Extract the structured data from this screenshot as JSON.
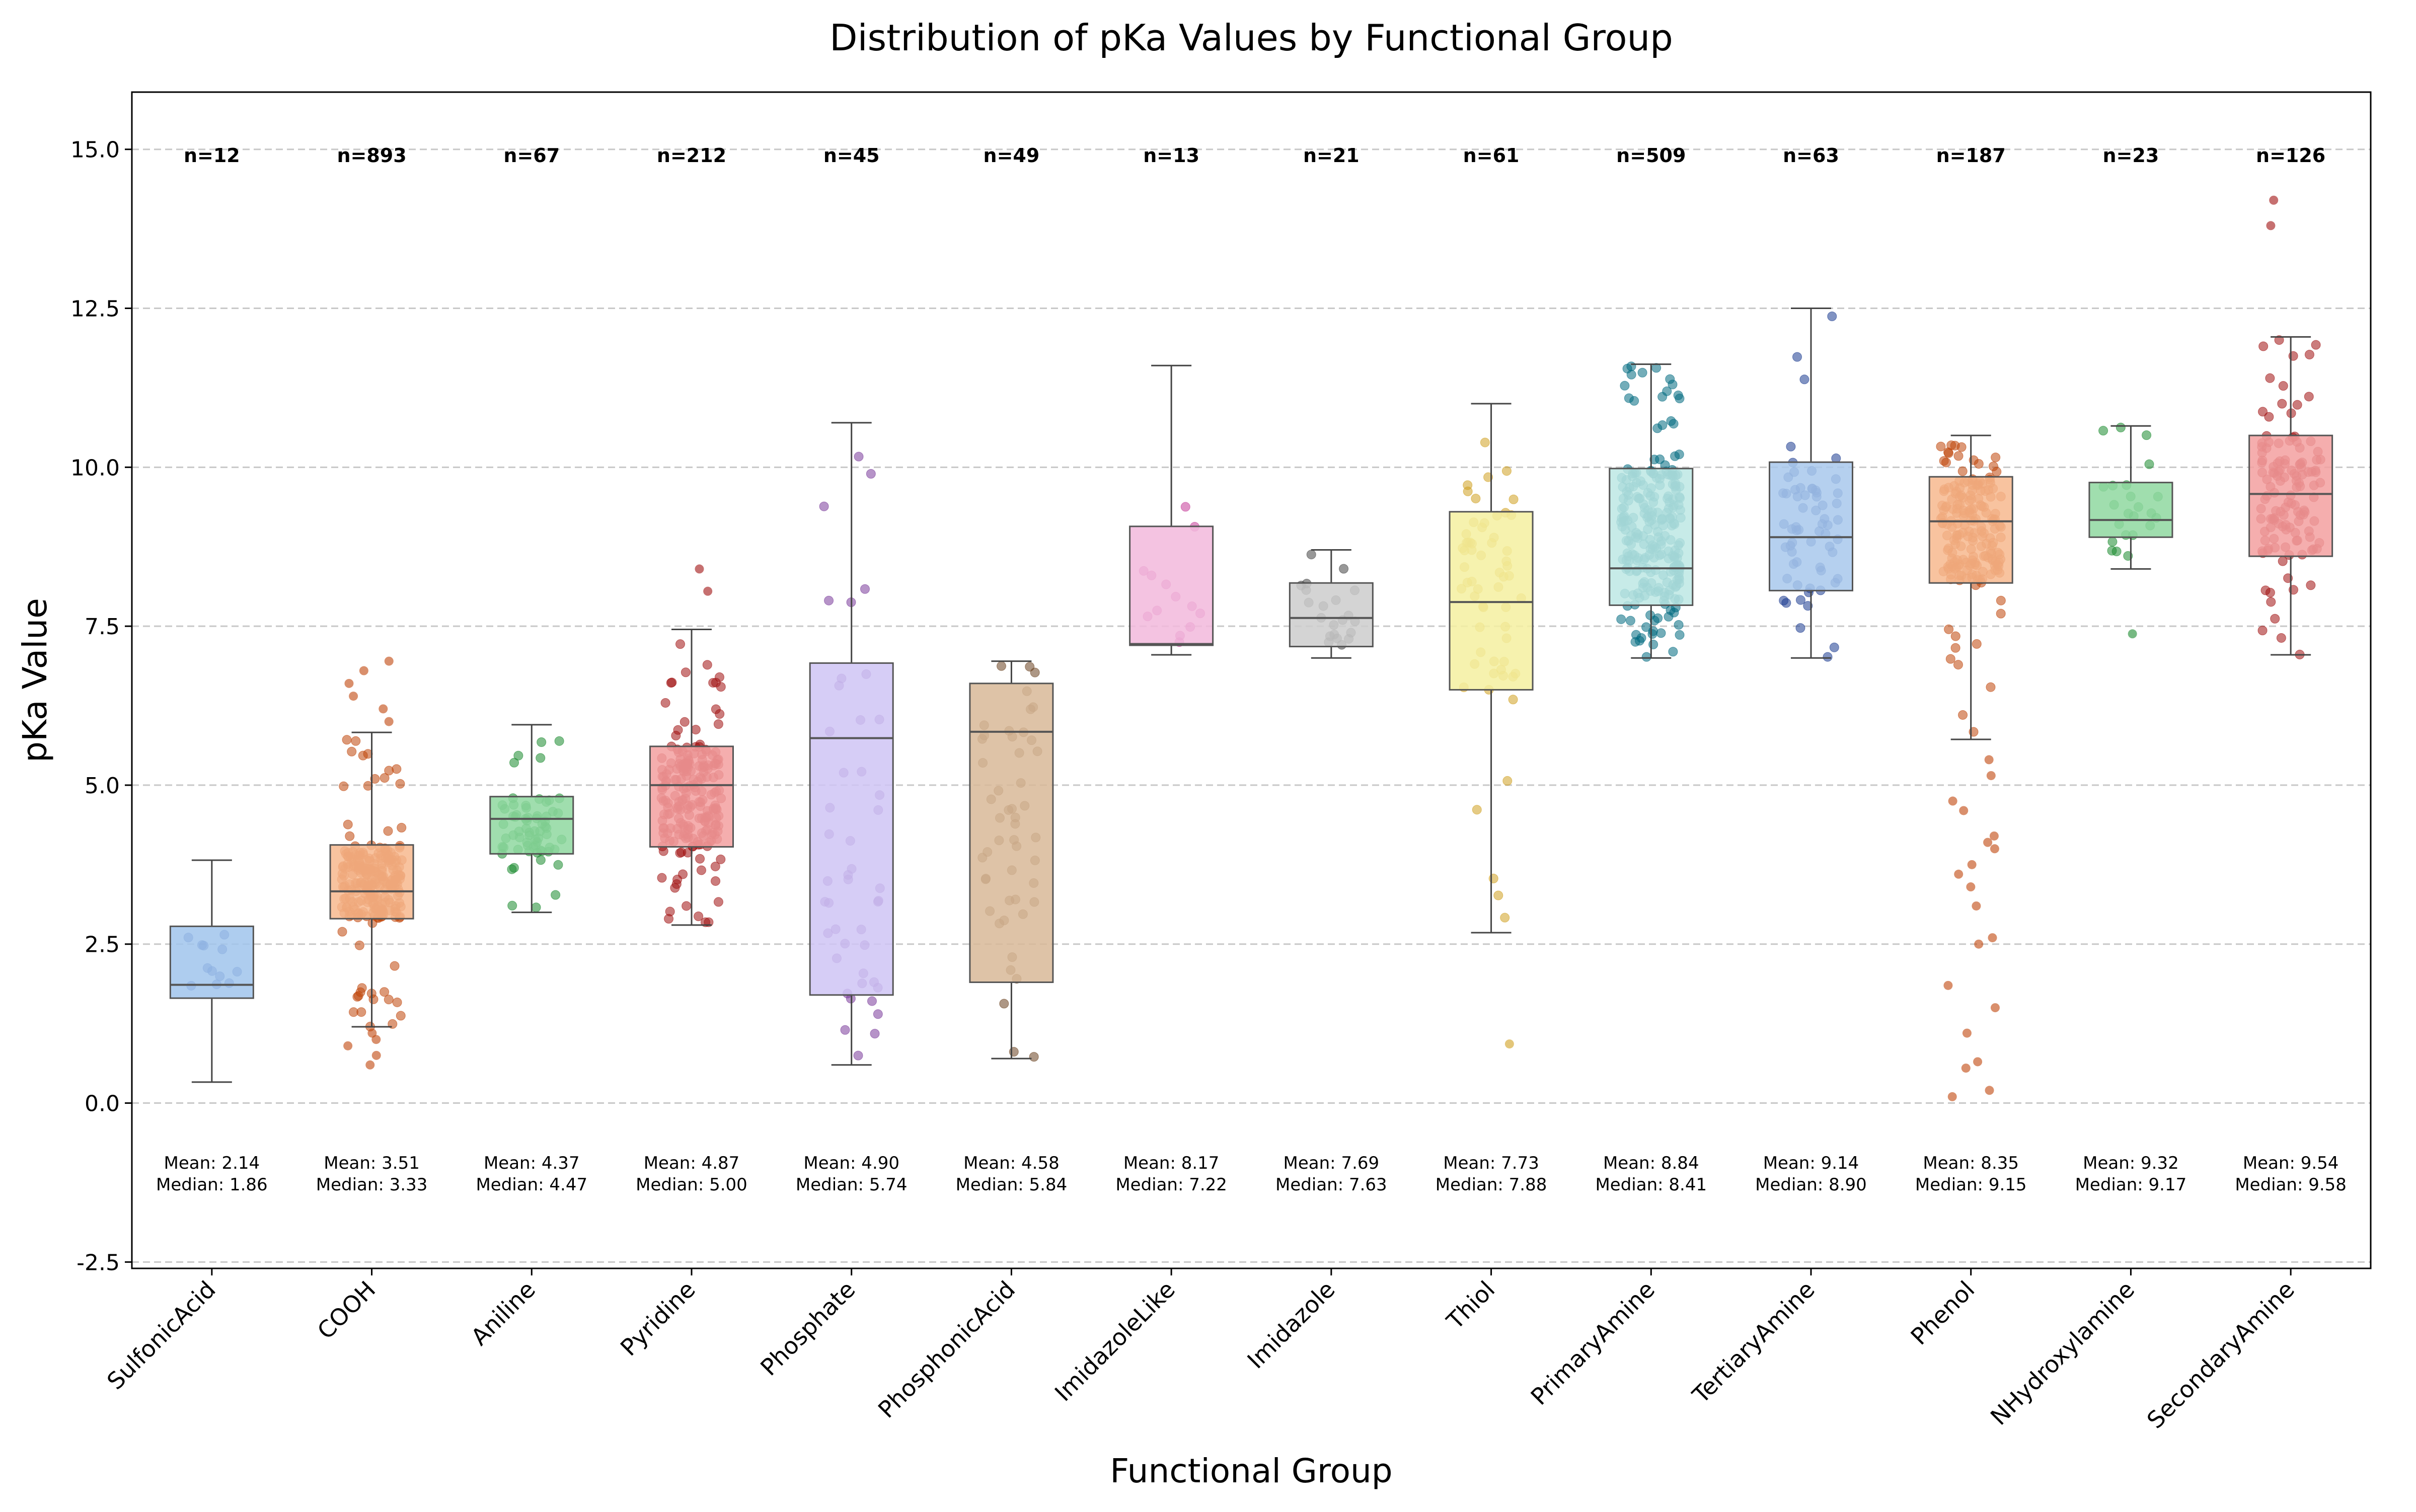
{
  "chart_data": {
    "type": "boxplot",
    "title": "Distribution of pKa Values by Functional Group",
    "xlabel": "Functional Group",
    "ylabel": "pKa Value",
    "ylim": [
      -2.6,
      15.9
    ],
    "yticks": [
      -2.5,
      0.0,
      2.5,
      5.0,
      7.5,
      10.0,
      12.5,
      15.0
    ],
    "grid": "horizontal dashed",
    "categories": [
      "SulfonicAcid",
      "COOH",
      "Aniline",
      "Pyridine",
      "Phosphate",
      "PhosphonicAcid",
      "ImidazoleLike",
      "Imidazole",
      "Thiol",
      "PrimaryAmine",
      "TertiaryAmine",
      "Phenol",
      "NHydroxylamine",
      "SecondaryAmine"
    ],
    "groups": [
      {
        "name": "SulfonicAcid",
        "n": 12,
        "count_label": "n=12",
        "mean": 2.14,
        "median": 1.86,
        "mean_label": "Mean: 2.14",
        "median_label": "Median: 1.86",
        "q1": 1.65,
        "q3": 2.78,
        "whisker_low": 0.33,
        "whisker_high": 3.82,
        "fill": "#a0c4ec",
        "point_color": "#1f3fa0",
        "outliers": []
      },
      {
        "name": "COOH",
        "n": 893,
        "count_label": "n=893",
        "mean": 3.51,
        "median": 3.33,
        "mean_label": "Mean: 3.51",
        "median_label": "Median: 3.33",
        "q1": 2.9,
        "q3": 4.06,
        "whisker_low": 1.2,
        "whisker_high": 5.83,
        "fill": "#f7b98e",
        "point_color": "#c0450a",
        "outliers": [
          0.6,
          0.75,
          0.9,
          1.0,
          1.1,
          6.0,
          6.2,
          6.4,
          6.6,
          6.8,
          6.95
        ]
      },
      {
        "name": "Aniline",
        "n": 67,
        "count_label": "n=67",
        "mean": 4.37,
        "median": 4.47,
        "mean_label": "Mean: 4.37",
        "median_label": "Median: 4.47",
        "q1": 3.92,
        "q3": 4.82,
        "whisker_low": 3.0,
        "whisker_high": 5.95,
        "fill": "#8fd8a0",
        "point_color": "#1a8a2e",
        "outliers": []
      },
      {
        "name": "Pyridine",
        "n": 212,
        "count_label": "n=212",
        "mean": 4.87,
        "median": 5.0,
        "mean_label": "Mean: 4.87",
        "median_label": "Median: 5.00",
        "q1": 4.03,
        "q3": 5.61,
        "whisker_low": 2.8,
        "whisker_high": 7.45,
        "fill": "#f3a0a0",
        "point_color": "#a01010",
        "outliers": [
          8.05,
          8.4
        ]
      },
      {
        "name": "Phosphate",
        "n": 45,
        "count_label": "n=45",
        "mean": 4.9,
        "median": 5.74,
        "mean_label": "Mean: 4.90",
        "median_label": "Median: 5.74",
        "q1": 1.7,
        "q3": 6.92,
        "whisker_low": 0.6,
        "whisker_high": 10.7,
        "fill": "#cfc4f4",
        "point_color": "#7a3a9a",
        "outliers": []
      },
      {
        "name": "PhosphonicAcid",
        "n": 49,
        "count_label": "n=49",
        "mean": 4.58,
        "median": 5.84,
        "mean_label": "Mean: 4.58",
        "median_label": "Median: 5.84",
        "q1": 1.9,
        "q3": 6.6,
        "whisker_low": 0.7,
        "whisker_high": 6.95,
        "fill": "#d8b898",
        "point_color": "#6a4220",
        "outliers": []
      },
      {
        "name": "ImidazoleLike",
        "n": 13,
        "count_label": "n=13",
        "mean": 8.17,
        "median": 7.22,
        "mean_label": "Mean: 8.17",
        "median_label": "Median: 7.22",
        "q1": 7.2,
        "q3": 9.07,
        "whisker_low": 7.05,
        "whisker_high": 11.6,
        "fill": "#f2b8dc",
        "point_color": "#c43a98",
        "outliers": []
      },
      {
        "name": "Imidazole",
        "n": 21,
        "count_label": "n=21",
        "mean": 7.69,
        "median": 7.63,
        "mean_label": "Mean: 7.69",
        "median_label": "Median: 7.63",
        "q1": 7.18,
        "q3": 8.18,
        "whisker_low": 7.0,
        "whisker_high": 8.7,
        "fill": "#cccccc",
        "point_color": "#444444",
        "outliers": []
      },
      {
        "name": "Thiol",
        "n": 61,
        "count_label": "n=61",
        "mean": 7.73,
        "median": 7.88,
        "mean_label": "Mean: 7.73",
        "median_label": "Median: 7.88",
        "q1": 6.5,
        "q3": 9.3,
        "whisker_low": 2.68,
        "whisker_high": 11.0,
        "fill": "#f5f0a0",
        "point_color": "#d0a020",
        "outliers": [
          0.93
        ]
      },
      {
        "name": "PrimaryAmine",
        "n": 509,
        "count_label": "n=509",
        "mean": 8.84,
        "median": 8.41,
        "mean_label": "Mean: 8.84",
        "median_label": "Median: 8.41",
        "q1": 7.83,
        "q3": 9.98,
        "whisker_low": 7.0,
        "whisker_high": 11.62,
        "fill": "#bde8e4",
        "point_color": "#006a80",
        "outliers": []
      },
      {
        "name": "TertiaryAmine",
        "n": 63,
        "count_label": "n=63",
        "mean": 9.14,
        "median": 8.9,
        "mean_label": "Mean: 9.14",
        "median_label": "Median: 8.90",
        "q1": 8.06,
        "q3": 10.08,
        "whisker_low": 7.0,
        "whisker_high": 12.5,
        "fill": "#a8c8ec",
        "point_color": "#1a3a90",
        "outliers": []
      },
      {
        "name": "Phenol",
        "n": 187,
        "count_label": "n=187",
        "mean": 8.35,
        "median": 9.15,
        "mean_label": "Mean: 8.35",
        "median_label": "Median: 9.15",
        "q1": 8.18,
        "q3": 9.85,
        "whisker_low": 5.72,
        "whisker_high": 10.5,
        "fill": "#f7b98e",
        "point_color": "#c0450a",
        "outliers": [
          0.1,
          0.2,
          0.55,
          0.65,
          1.1,
          1.5,
          1.85,
          2.5,
          2.6,
          3.1,
          3.4,
          3.6,
          3.75,
          4.0,
          4.1,
          4.2,
          4.6,
          4.75,
          5.15,
          5.4
        ]
      },
      {
        "name": "NHydroxylamine",
        "n": 23,
        "count_label": "n=23",
        "mean": 9.32,
        "median": 9.17,
        "mean_label": "Mean: 9.32",
        "median_label": "Median: 9.17",
        "q1": 8.9,
        "q3": 9.76,
        "whisker_low": 8.4,
        "whisker_high": 10.65,
        "fill": "#8fd8a0",
        "point_color": "#1a8a2e",
        "outliers": [
          7.38
        ]
      },
      {
        "name": "SecondaryAmine",
        "n": 126,
        "count_label": "n=126",
        "mean": 9.54,
        "median": 9.58,
        "mean_label": "Mean: 9.54",
        "median_label": "Median: 9.58",
        "q1": 8.6,
        "q3": 10.5,
        "whisker_low": 7.05,
        "whisker_high": 12.05,
        "fill": "#f3a0a0",
        "point_color": "#a01010",
        "outliers": [
          13.8,
          14.2
        ]
      }
    ]
  }
}
